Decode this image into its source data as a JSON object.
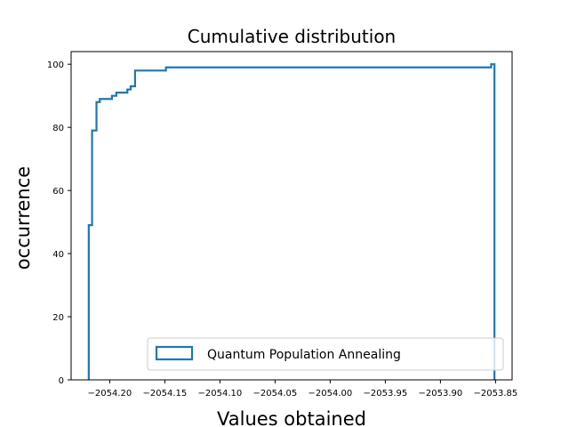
{
  "chart_data": {
    "type": "step",
    "title": "Cumulative distribution",
    "xlabel": "Values obtained",
    "ylabel": "occurrence",
    "xlim": [
      -2054.235,
      -2053.835
    ],
    "ylim": [
      0,
      104
    ],
    "grid": false,
    "legend_position": "bottom-right",
    "x_ticks": [
      -2054.2,
      -2054.15,
      -2054.1,
      -2054.05,
      -2054.0,
      -2053.95,
      -2053.9,
      -2053.85
    ],
    "x_tick_labels": [
      "−2054.20",
      "−2054.15",
      "−2054.10",
      "−2054.05",
      "−2054.00",
      "−2053.95",
      "−2053.90",
      "−2053.85"
    ],
    "y_ticks": [
      0,
      20,
      40,
      60,
      80,
      100
    ],
    "y_tick_labels": [
      "0",
      "20",
      "40",
      "60",
      "80",
      "100"
    ],
    "series": [
      {
        "name": "Quantum Population Annealing",
        "color": "#1f77b4",
        "x": [
          -2054.219,
          -2054.216,
          -2054.212,
          -2054.209,
          -2054.205,
          -2054.198,
          -2054.194,
          -2054.184,
          -2054.181,
          -2054.177,
          -2054.174,
          -2054.149,
          -2053.854,
          -2053.851
        ],
        "y": [
          49,
          79,
          88,
          89,
          89,
          90,
          91,
          92,
          93,
          98,
          98,
          99,
          100,
          100
        ]
      }
    ]
  }
}
